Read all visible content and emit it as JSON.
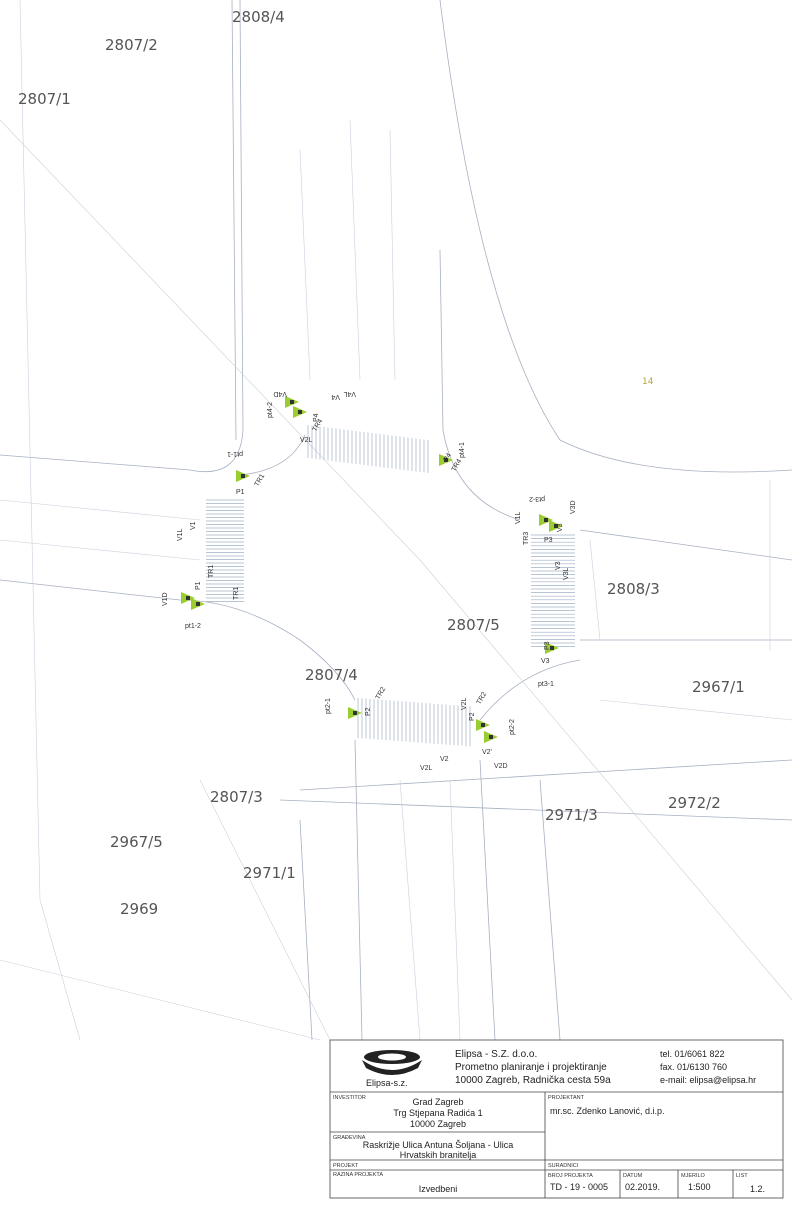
{
  "parcels": [
    "2808/4",
    "2807/2",
    "2807/1",
    "14",
    "2808/3",
    "2807/5",
    "2807/4",
    "2967/1",
    "2807/3",
    "2972/2",
    "2971/3",
    "2967/5",
    "2971/1",
    "2969"
  ],
  "signal_labels": [
    "V4D",
    "pt4-2",
    "V4L",
    "V4",
    "V2L",
    "P4",
    "TR4",
    "pt4-1",
    "P4",
    "TR4",
    "pt1-1",
    "P1",
    "TR1",
    "V1L",
    "V1",
    "P1",
    "TR1",
    "V1D",
    "pt1-2",
    "TR1",
    "pt3-2",
    "V1L",
    "V3D",
    "V3",
    "P3",
    "TR3",
    "V3",
    "V3L",
    "P3",
    "pt3-1",
    "V3",
    "TR2",
    "pt2-1",
    "P2",
    "TR2",
    "P2",
    "V2L",
    "V2L",
    "V2",
    "V2'",
    "V2D",
    "pt2-2"
  ],
  "title_block": {
    "company": "Elipsa - S.Z. d.o.o.",
    "activity": "Prometno planiranje i projektiranje",
    "address": "10000 Zagreb,  Radnička cesta 59a",
    "tel": "tel. 01/6061 822",
    "fax": "fax. 01/6130 760",
    "email": "e-mail: elipsa@elipsa.hr",
    "logo_caption": "Elipsa-s.z.",
    "investor_label": "INVESTITOR",
    "investor": [
      "Grad Zagreb",
      "Trg Stjepana Radića 1",
      "10000 Zagreb"
    ],
    "designer_label": "PROJEKTANT",
    "designer": "mr.sc. Zdenko Lanović, d.i.p.",
    "building_label": "GRAĐEVINA",
    "building": [
      "Raskrižje Ulica Antuna Šoljana - Ulica",
      "Hrvatskih branitelja"
    ],
    "project_label": "PROJEKT",
    "level_label": "RAZINA PROJEKTA",
    "level": "Izvedbeni",
    "associates_label": "SURADNICI",
    "number_label": "BROJ PROJEKTA",
    "number": "TD - 19 - 0005",
    "date_label": "DATUM",
    "date": "02.2019.",
    "scale_label": "MJERILO",
    "scale": "1:500",
    "sheet_label": "LIST",
    "sheet": "1.2."
  }
}
